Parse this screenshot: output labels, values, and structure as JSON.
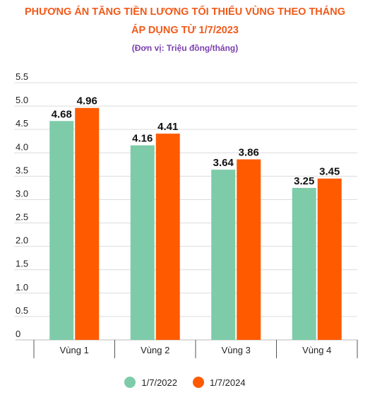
{
  "title_line1": "PHƯƠNG ÁN TĂNG TIỀN LƯƠNG TỐI THIỂU VÙNG THEO THÁNG",
  "title_line2": "ÁP DỤNG TỪ 1/7/2023",
  "subtitle": "(Đơn vị: Triệu đồng/tháng)",
  "chart_data": {
    "type": "bar",
    "title": "PHƯƠNG ÁN TĂNG TIỀN LƯƠNG TỐI THIỂU VÙNG THEO THÁNG ÁP DỤNG TỪ 1/7/2023",
    "subtitle": "(Đơn vị: Triệu đồng/tháng)",
    "categories": [
      "Vùng 1",
      "Vùng 2",
      "Vùng 3",
      "Vùng 4"
    ],
    "series": [
      {
        "name": "1/7/2022",
        "values": [
          4.68,
          4.16,
          3.64,
          3.25
        ],
        "color": "#7ecba9"
      },
      {
        "name": "1/7/2024",
        "values": [
          4.96,
          4.41,
          3.86,
          3.45
        ],
        "color": "#ff5a00"
      }
    ],
    "value_labels": [
      [
        "4.68",
        "4.16",
        "3.64",
        "3.25"
      ],
      [
        "4.96",
        "4.41",
        "3.86",
        "3.45"
      ]
    ],
    "yticks": [
      "0",
      "0.5",
      "1.0",
      "1.5",
      "2.0",
      "2.5",
      "3.0",
      "3.5",
      "4.0",
      "4.5",
      "5.0",
      "5.5"
    ],
    "ylim": [
      0,
      5.5
    ],
    "grid": true,
    "legend_position": "bottom"
  }
}
